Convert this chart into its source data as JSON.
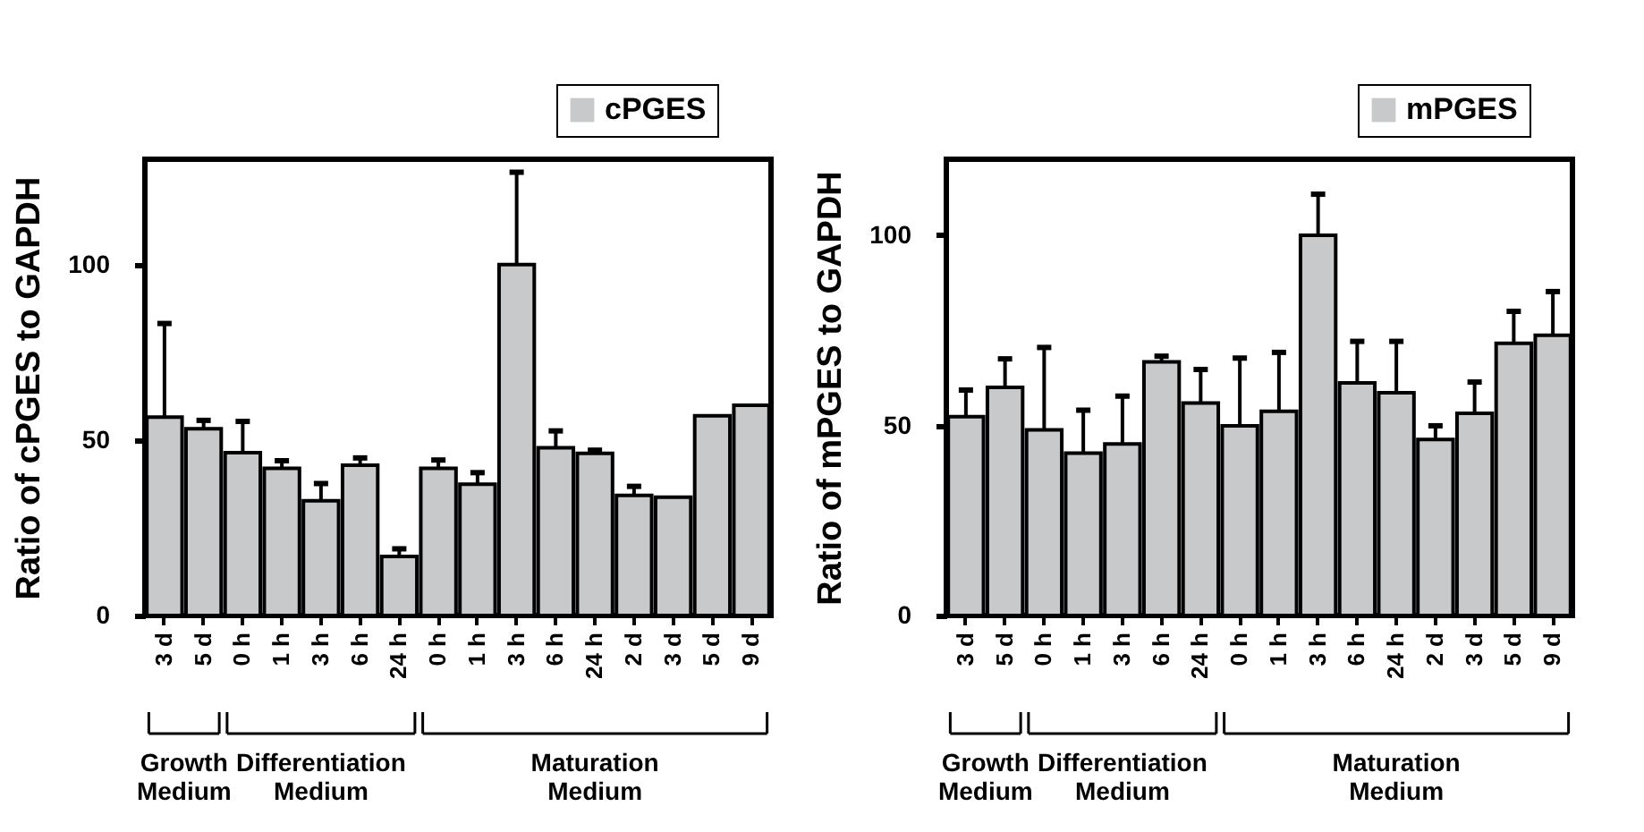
{
  "chart_data": [
    {
      "type": "bar",
      "ylabel": "Ratio of cPGES to GAPDH",
      "categories": [
        "3 d",
        "5 d",
        "0 h",
        "1 h",
        "3 h",
        "6 h",
        "24 h",
        "0 h",
        "1 h",
        "3 h",
        "6 h",
        "24 h",
        "2 d",
        "3 d",
        "5 d",
        "9 d"
      ],
      "series": [
        {
          "name": "cPGES",
          "color": "#c8c9cb",
          "values": [
            56.5,
            53.2,
            46.4,
            41.9,
            32.7,
            42.8,
            16.8,
            41.9,
            37.4,
            100,
            47.8,
            46.2,
            34.2,
            33.7,
            56.9,
            59.9
          ],
          "errors": [
            [
              56.5,
              83.2
            ],
            [
              53.2,
              55.6
            ],
            [
              46.4,
              55.3
            ],
            [
              41.9,
              44.1
            ],
            [
              32.7,
              37.6
            ],
            [
              42.8,
              44.9
            ],
            [
              16.8,
              19.0
            ],
            [
              41.9,
              44.3
            ],
            [
              37.4,
              40.7
            ],
            [
              100,
              126.3
            ],
            [
              47.8,
              52.6
            ],
            [
              46.2,
              47.1
            ],
            [
              34.2,
              36.8
            ],
            null,
            null,
            null
          ]
        }
      ],
      "ylim": [
        0,
        130
      ],
      "yticks": [
        0,
        50,
        100
      ],
      "grid": false,
      "legend": "top right",
      "annotations": [
        "Growth Medium",
        "Differentiation Medium",
        "Maturation Medium"
      ]
    },
    {
      "type": "bar",
      "ylabel": "Ratio of mPGES to GAPDH",
      "categories": [
        "3 d",
        "5 d",
        "0 h",
        "1 h",
        "3 h",
        "6 h",
        "24 h",
        "0 h",
        "1 h",
        "3 h",
        "6 h",
        "24 h",
        "2 d",
        "3 d",
        "5 d",
        "9 d"
      ],
      "series": [
        {
          "name": "mPGES",
          "color": "#c8c9cb",
          "values": [
            52.3,
            60.0,
            48.8,
            42.7,
            45.1,
            66.7,
            55.9,
            49.9,
            53.7,
            100,
            61.2,
            58.6,
            46.3,
            53.2,
            71.6,
            73.7
          ],
          "errors": [
            [
              52.3,
              59.3
            ],
            [
              60.0,
              67.5
            ],
            [
              48.8,
              70.5
            ],
            [
              42.7,
              54.0
            ],
            [
              45.1,
              57.7
            ],
            [
              66.7,
              68.2
            ],
            [
              55.9,
              64.7
            ],
            [
              49.9,
              67.7
            ],
            [
              53.7,
              69.2
            ],
            [
              100,
              110.8
            ],
            [
              61.2,
              72.1
            ],
            [
              58.6,
              72.1
            ],
            [
              46.3,
              49.9
            ],
            [
              53.2,
              61.4
            ],
            [
              71.6,
              80.0
            ],
            [
              73.7,
              85.2
            ]
          ]
        }
      ],
      "ylim": [
        0,
        120
      ],
      "yticks": [
        0,
        50,
        100
      ],
      "grid": false,
      "legend": "top right",
      "annotations": [
        "Growth Medium",
        "Differentiation Medium",
        "Maturation Medium"
      ]
    }
  ]
}
